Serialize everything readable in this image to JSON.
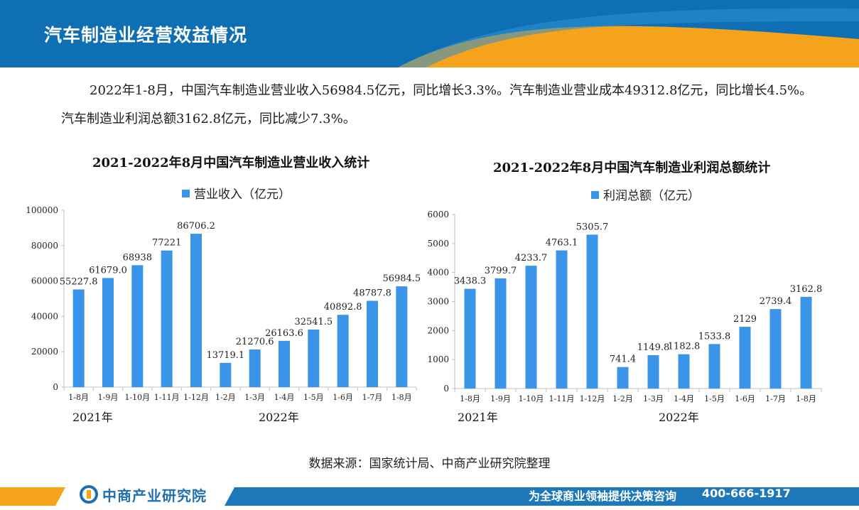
{
  "header": {
    "title": "汽车制造业经营效益情况"
  },
  "summary": {
    "text": "2022年1-8月，中国汽车制造业营业收入56984.5亿元，同比增长3.3%。汽车制造业营业成本49312.8亿元，同比增长4.5%。汽车制造业利润总额3162.8亿元，同比减少7.3%。"
  },
  "chart_data": [
    {
      "type": "bar",
      "title": "2021-2022年8月中国汽车制造业营业收入统计",
      "categories": [
        "1-8月",
        "1-9月",
        "1-10月",
        "1-11月",
        "1-12月",
        "1-2月",
        "1-3月",
        "1-4月",
        "1-5月",
        "1-6月",
        "1-7月",
        "1-8月"
      ],
      "series": [
        {
          "name": "营业收入（亿元）",
          "values": [
            55227.8,
            61679.0,
            68938,
            77221,
            86706.2,
            13719.1,
            21270.6,
            26163.6,
            32541.5,
            40892.8,
            48787.8,
            56984.5
          ]
        }
      ],
      "value_labels": [
        "55227.8",
        "61679.0",
        "68938",
        "77221",
        "86706.2",
        "13719.1",
        "21270.6",
        "26163.6",
        "32541.5",
        "40892.8",
        "48787.8",
        "56984.5"
      ],
      "yticks": [
        "0",
        "20000",
        "40000",
        "60000",
        "80000",
        "100000"
      ],
      "ylim": [
        0,
        100000
      ],
      "year_groups": [
        "2021年",
        "2022年"
      ],
      "legend": "top",
      "grid": false,
      "color": "#3a95e8"
    },
    {
      "type": "bar",
      "title": "2021-2022年8月中国汽车制造业利润总额统计",
      "categories": [
        "1-8月",
        "1-9月",
        "1-10月",
        "1-11月",
        "1-12月",
        "1-2月",
        "1-3月",
        "1-4月",
        "1-5月",
        "1-6月",
        "1-7月",
        "1-8月"
      ],
      "series": [
        {
          "name": "利润总额（亿元）",
          "values": [
            3438.3,
            3799.7,
            4233.7,
            4763.1,
            5305.7,
            741.4,
            1149.8,
            1182.8,
            1533.8,
            2129,
            2739.4,
            3162.8
          ]
        }
      ],
      "value_labels": [
        "3438.3",
        "3799.7",
        "4233.7",
        "4763.1",
        "5305.7",
        "741.4",
        "1149.8",
        "1182.8",
        "1533.8",
        "2129",
        "2739.4",
        "3162.8"
      ],
      "yticks": [
        "0",
        "1000",
        "2000",
        "3000",
        "4000",
        "5000",
        "6000"
      ],
      "ylim": [
        0,
        6000
      ],
      "year_groups": [
        "2021年",
        "2022年"
      ],
      "legend": "top",
      "grid": false,
      "color": "#3a95e8"
    }
  ],
  "source": "数据来源：国家统计局、中商产业研究院整理",
  "footer": {
    "logo_text": "中商产业研究院",
    "slogan": "为全球商业领袖提供决策咨询",
    "phone": "400-666-1917"
  },
  "colors": {
    "header_blue": "#0e6fb5",
    "header_orange": "#f5a31a",
    "bar": "#3a95e8",
    "footer_blue": "#1c78b8"
  }
}
